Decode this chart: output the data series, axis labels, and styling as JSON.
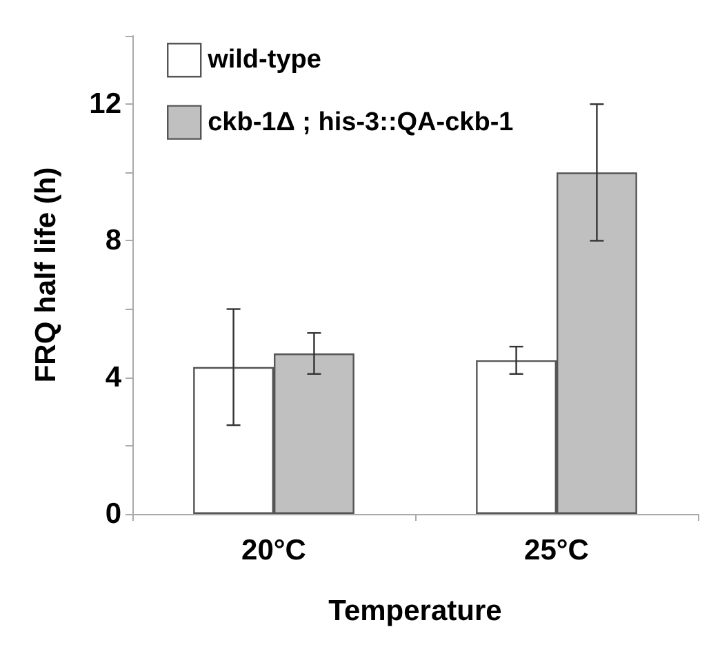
{
  "chart_data": {
    "type": "bar",
    "xlabel": "Temperature",
    "ylabel": "FRQ half life (h)",
    "categories": [
      "20°C",
      "25°C"
    ],
    "series": [
      {
        "name": "wild-type",
        "color": "#ffffff",
        "values": [
          4.3,
          4.5
        ],
        "errors": [
          [
            2.6,
            6.0
          ],
          [
            4.1,
            4.9
          ]
        ]
      },
      {
        "name": "ckb-1Δ ; his-3::QA-ckb-1",
        "color": "#c0c0c0",
        "values": [
          4.7,
          10
        ],
        "errors": [
          [
            4.1,
            5.3
          ],
          [
            8,
            12
          ]
        ]
      }
    ],
    "ylim": [
      0,
      14
    ],
    "yticks": [
      0,
      {
        "value": 2,
        "label": null
      },
      4,
      {
        "value": 6,
        "label": null
      },
      8,
      {
        "value": 10,
        "label": null
      },
      12,
      {
        "value": 14,
        "label": null
      }
    ],
    "grid": false,
    "legend": "top left"
  }
}
